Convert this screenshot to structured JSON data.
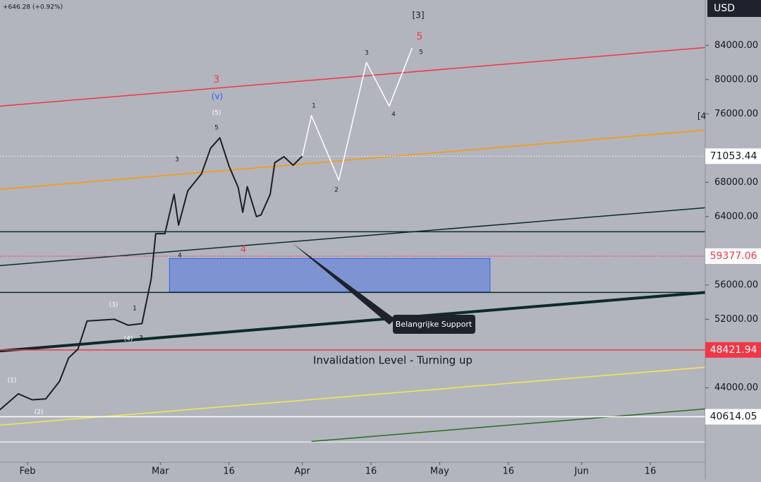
{
  "chart_data": {
    "type": "line",
    "header_text": "+646.28 (+0.92%)",
    "currency": "USD",
    "xlim": [
      "01-26",
      "06-28"
    ],
    "ylim": [
      35300,
      89300
    ],
    "xticks": [
      {
        "value": "02-01",
        "label": "Feb"
      },
      {
        "value": "03-01",
        "label": "Mar"
      },
      {
        "value": "03-16",
        "label": "16"
      },
      {
        "value": "04-01",
        "label": "Apr"
      },
      {
        "value": "04-16",
        "label": "16"
      },
      {
        "value": "05-01",
        "label": "May"
      },
      {
        "value": "05-16",
        "label": "16"
      },
      {
        "value": "06-01",
        "label": "Jun"
      },
      {
        "value": "06-16",
        "label": "16"
      }
    ],
    "yticks": [
      {
        "value": 84000,
        "label": "84000.00"
      },
      {
        "value": 80000,
        "label": "80000.00"
      },
      {
        "value": 76000,
        "label": "76000.00"
      },
      {
        "value": 68000,
        "label": "68000.00"
      },
      {
        "value": 64000,
        "label": "64000.00"
      },
      {
        "value": 56000,
        "label": "56000.00"
      },
      {
        "value": 52000,
        "label": "52000.00"
      },
      {
        "value": 44000,
        "label": "44000.00"
      }
    ],
    "series": [
      {
        "color": "#1b1e24",
        "x": [
          "01-26",
          "01-27",
          "01-30",
          "02-02",
          "02-05",
          "02-08",
          "02-10",
          "02-12",
          "02-14",
          "02-17",
          "02-20",
          "02-23",
          "02-26",
          "02-28",
          "02-29",
          "03-02",
          "03-04",
          "03-05",
          "03-07",
          "03-10",
          "03-12",
          "03-14",
          "03-16",
          "03-18",
          "03-19",
          "03-20",
          "03-22",
          "03-23",
          "03-25",
          "03-26",
          "03-28",
          "03-30",
          "04-01"
        ],
        "values": [
          41440,
          41900,
          43300,
          42600,
          42700,
          44750,
          47500,
          48500,
          51800,
          51900,
          52000,
          51300,
          51500,
          56700,
          62000,
          62000,
          66600,
          63000,
          67000,
          69000,
          72000,
          73200,
          69900,
          67400,
          64500,
          67500,
          64000,
          64200,
          66600,
          70300,
          71000,
          70000,
          71053
        ]
      },
      {
        "color": "#ffffff",
        "x": [
          "04-01",
          "04-03",
          "04-09",
          "04-15",
          "04-20",
          "04-25"
        ],
        "values": [
          71053,
          75800,
          68250,
          82000,
          76900,
          83700
        ]
      }
    ],
    "trend_lines": [
      {
        "color": "#f23645",
        "x": [
          "01-26",
          "06-28"
        ],
        "values": [
          76900,
          83750
        ]
      },
      {
        "color": "#ff9800",
        "x": [
          "01-26",
          "06-28"
        ],
        "values": [
          67180,
          74100
        ]
      },
      {
        "color": "#0d2b26",
        "x": [
          "01-26",
          "06-28"
        ],
        "values": [
          58270,
          65030
        ]
      },
      {
        "color": "#0d2b26",
        "x": [
          "01-26",
          "06-28"
        ],
        "values": [
          48300,
          55140
        ]
      },
      {
        "color": "#f5e94a",
        "x": [
          "01-26",
          "06-28"
        ],
        "values": [
          39640,
          46400
        ]
      },
      {
        "color": "#2e6b1f",
        "x": [
          "04-03",
          "06-28"
        ],
        "values": [
          37730,
          41530
        ]
      }
    ],
    "levels": [
      {
        "value": 62230,
        "color": "#0d2b26"
      },
      {
        "value": 55140,
        "color": "#0d2b26"
      },
      {
        "value": 37660,
        "color": "#e8e8e8"
      }
    ],
    "zones": [
      {
        "x0": "03-03",
        "x1": "05-12",
        "top": 59100,
        "bottom": 55200,
        "color": "#5b7fe0"
      }
    ],
    "price_labels": [
      {
        "value": 71053.44,
        "bg": "#ffffff",
        "fg": "#131722",
        "line": "#e8e8e8"
      },
      {
        "value": 59377.06,
        "bg": "#ffffff",
        "fg": "#f23645",
        "line": "#f23645"
      },
      {
        "value": 48421.94,
        "bg": "#f23645",
        "fg": "#ffffff",
        "line": "#f23645"
      },
      {
        "value": 40614.05,
        "bg": "#ffffff",
        "fg": "#131722",
        "line": "#ffffff"
      }
    ],
    "annotations": [
      {
        "text": "[3]",
        "color": "#131722"
      },
      {
        "text": "5",
        "color": "#f23645"
      },
      {
        "text": "3",
        "color": "#131722"
      },
      {
        "text": "5",
        "color": "#131722"
      },
      {
        "text": "3",
        "color": "#f23645"
      },
      {
        "text": "(v)",
        "color": "#2962ff"
      },
      {
        "text": "(5)",
        "color": "#ffffff"
      },
      {
        "text": "1",
        "color": "#131722"
      },
      {
        "text": "5",
        "color": "#131722"
      },
      {
        "text": "4",
        "color": "#131722"
      },
      {
        "text": "[4",
        "color": "#131722"
      },
      {
        "text": "3",
        "color": "#131722"
      },
      {
        "text": "2",
        "color": "#131722"
      },
      {
        "text": "4",
        "color": "#131722"
      },
      {
        "text": "4",
        "color": "#f23645"
      },
      {
        "text": "(3)",
        "color": "#ffffff"
      },
      {
        "text": "1",
        "color": "#131722"
      },
      {
        "text": "(4)",
        "color": "#ffffff"
      },
      {
        "text": "3",
        "color": "#131722"
      },
      {
        "text": "(1)",
        "color": "#ffffff"
      },
      {
        "text": "(2)",
        "color": "#ffffff"
      },
      {
        "text": "Invalidation Level - Turning up",
        "color": "#131722"
      }
    ],
    "callout": "Belangrijke Support"
  }
}
